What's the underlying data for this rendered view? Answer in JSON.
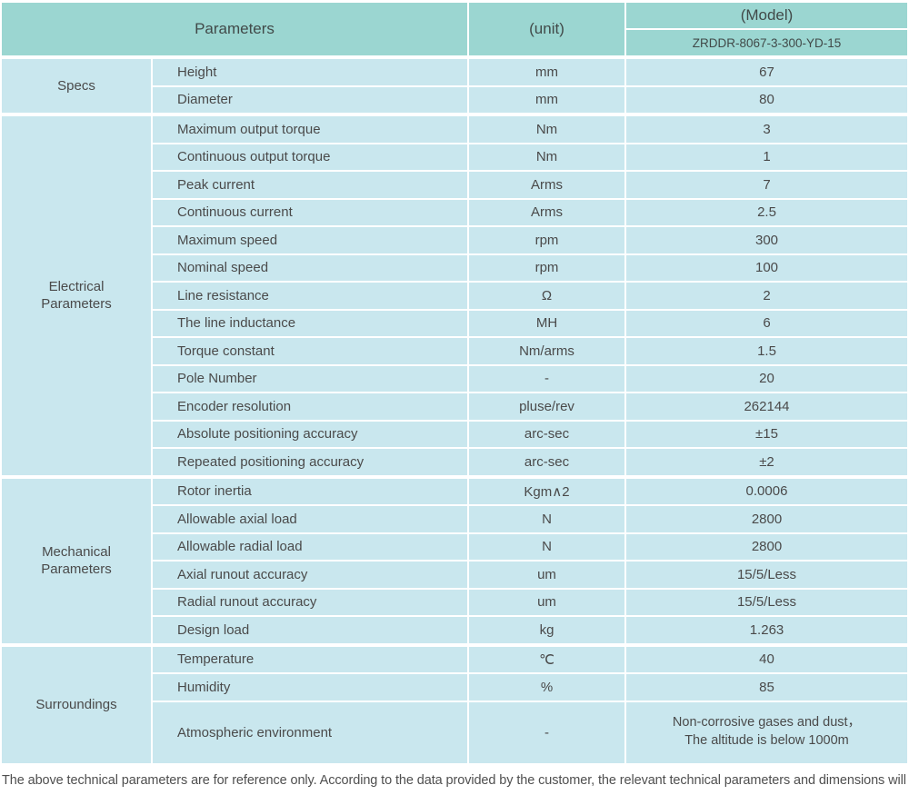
{
  "header": {
    "parameters_label": "Parameters",
    "unit_label": "(unit)",
    "model_label": "(Model)",
    "model_number": "ZRDDR-8067-3-300-YD-15"
  },
  "sections": [
    {
      "label": "Specs",
      "rows": [
        {
          "param": "Height",
          "unit": "mm",
          "value": "67"
        },
        {
          "param": "Diameter",
          "unit": "mm",
          "value": "80"
        }
      ]
    },
    {
      "label": "Electrical\nParameters",
      "rows": [
        {
          "param": "Maximum output torque",
          "unit": "Nm",
          "value": "3"
        },
        {
          "param": "Continuous output torque",
          "unit": "Nm",
          "value": "1"
        },
        {
          "param": "Peak current",
          "unit": "Arms",
          "value": "7"
        },
        {
          "param": "Continuous current",
          "unit": "Arms",
          "value": "2.5"
        },
        {
          "param": "Maximum speed",
          "unit": "rpm",
          "value": "300"
        },
        {
          "param": "Nominal speed",
          "unit": "rpm",
          "value": "100"
        },
        {
          "param": "Line resistance",
          "unit": "Ω",
          "value": "2"
        },
        {
          "param": "The line inductance",
          "unit": "MH",
          "value": "6"
        },
        {
          "param": "Torque constant",
          "unit": "Nm/arms",
          "value": "1.5"
        },
        {
          "param": "Pole Number",
          "unit": "-",
          "value": "20"
        },
        {
          "param": "Encoder resolution",
          "unit": "pluse/rev",
          "value": "262144"
        },
        {
          "param": "Absolute positioning accuracy",
          "unit": "arc-sec",
          "value": "±15"
        },
        {
          "param": "Repeated positioning accuracy",
          "unit": "arc-sec",
          "value": "±2"
        }
      ]
    },
    {
      "label": "Mechanical\nParameters",
      "rows": [
        {
          "param": "Rotor inertia",
          "unit": "Kgm∧2",
          "value": "0.0006"
        },
        {
          "param": "Allowable axial load",
          "unit": "N",
          "value": "2800"
        },
        {
          "param": "Allowable radial load",
          "unit": "N",
          "value": "2800"
        },
        {
          "param": "Axial runout accuracy",
          "unit": "um",
          "value": "15/5/Less"
        },
        {
          "param": "Radial runout accuracy",
          "unit": "um",
          "value": "15/5/Less"
        },
        {
          "param": "Design load",
          "unit": "kg",
          "value": "1.263"
        }
      ]
    },
    {
      "label": "Surroundings",
      "rows": [
        {
          "param": "Temperature",
          "unit": "℃",
          "value": "40"
        },
        {
          "param": "Humidity",
          "unit": "%",
          "value": "85"
        },
        {
          "param": "Atmospheric environment",
          "unit": "-",
          "value": "Non-corrosive gases and dust，\nThe altitude is below 1000m"
        }
      ]
    }
  ],
  "footer": {
    "note": "The above technical parameters are for reference only. According to the data provided by the customer, the relevant technical parameters and dimensions will be issued."
  },
  "colors": {
    "header_bg": "#9bd6d1",
    "row_bg": "#c9e7ee",
    "text": "#4a4a4a"
  }
}
